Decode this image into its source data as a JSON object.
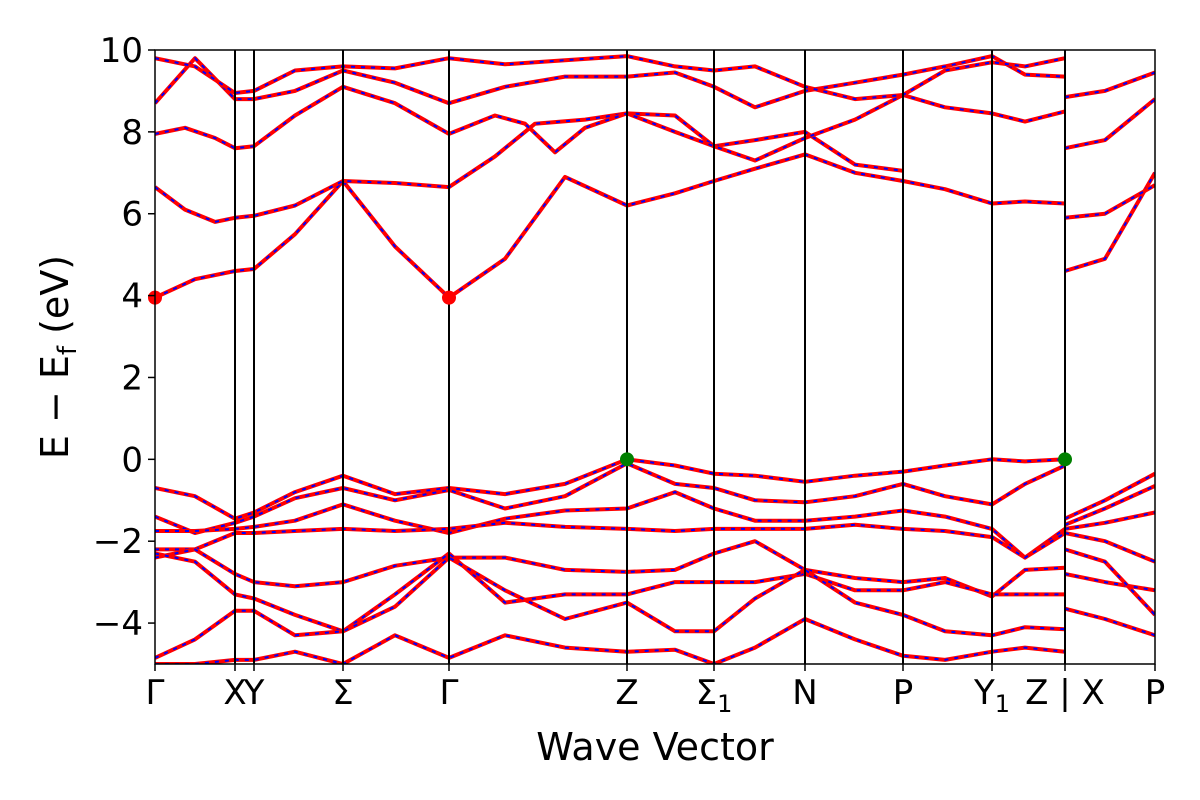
{
  "chart_data": {
    "type": "line",
    "title": "",
    "xlabel": "Wave Vector",
    "ylabel": "E − E_f (eV)",
    "ylabel_parts": {
      "main": "E − E",
      "sub": "f",
      "unit": "(eV)"
    },
    "ylim": [
      -5,
      10
    ],
    "xlim": [
      0,
      1
    ],
    "grid": false,
    "yticks": [
      {
        "value": -4,
        "label": "−4"
      },
      {
        "value": -2,
        "label": "−2"
      },
      {
        "value": 0,
        "label": "0"
      },
      {
        "value": 2,
        "label": "2"
      },
      {
        "value": 4,
        "label": "4"
      },
      {
        "value": 6,
        "label": "6"
      },
      {
        "value": 8,
        "label": "8"
      },
      {
        "value": 10,
        "label": "10"
      }
    ],
    "kpoints": [
      {
        "x": 0.0,
        "label": "Γ",
        "sub": ""
      },
      {
        "x": 0.08,
        "label": "X",
        "sub": ""
      },
      {
        "x": 0.099,
        "label": "Y",
        "sub": ""
      },
      {
        "x": 0.188,
        "label": "Σ",
        "sub": ""
      },
      {
        "x": 0.294,
        "label": "Γ",
        "sub": ""
      },
      {
        "x": 0.472,
        "label": "Z",
        "sub": ""
      },
      {
        "x": 0.559,
        "label": "Σ",
        "sub": "1"
      },
      {
        "x": 0.65,
        "label": "N",
        "sub": ""
      },
      {
        "x": 0.748,
        "label": "P",
        "sub": ""
      },
      {
        "x": 0.837,
        "label": "Y",
        "sub": "1"
      },
      {
        "x": 0.91,
        "label": "Z | X",
        "sub": ""
      },
      {
        "x": 1.0,
        "label": "P",
        "sub": ""
      }
    ],
    "colors": {
      "band_primary": "#ff0000",
      "band_overlay": "#0000ff",
      "cbm_marker": "#ff0000",
      "vbm_marker": "#008000",
      "vline": "#000000"
    },
    "markers": [
      {
        "type": "cbm",
        "x": 0.0,
        "y": 3.95
      },
      {
        "type": "cbm",
        "x": 0.294,
        "y": 3.95
      },
      {
        "type": "vbm",
        "x": 0.472,
        "y": 0.0
      },
      {
        "type": "vbm",
        "x": 0.91,
        "y": 0.0
      }
    ],
    "series": [
      {
        "x": [
          0,
          0.04,
          0.08,
          0.099,
          0.14,
          0.188,
          0.24,
          0.294,
          0.35,
          0.41,
          0.472,
          0.52,
          0.559,
          0.6,
          0.65,
          0.7,
          0.748,
          0.79,
          0.837,
          0.87,
          0.91
        ],
        "y": [
          3.95,
          4.4,
          4.6,
          4.65,
          5.5,
          6.8,
          5.2,
          3.95,
          4.9,
          6.9,
          6.2,
          6.5,
          6.8,
          7.1,
          7.45,
          7.0,
          6.8,
          6.6,
          6.25,
          6.3,
          6.25
        ]
      },
      {
        "x": [
          0,
          0.03,
          0.06,
          0.08,
          0.099,
          0.14,
          0.188,
          0.24,
          0.294,
          0.34,
          0.38,
          0.43,
          0.472,
          0.52,
          0.559,
          0.6,
          0.65,
          0.7,
          0.748
        ],
        "y": [
          6.65,
          6.1,
          5.8,
          5.9,
          5.95,
          6.2,
          6.8,
          6.75,
          6.65,
          7.4,
          8.2,
          8.3,
          8.45,
          8.4,
          7.65,
          7.8,
          8.0,
          7.2,
          7.05
        ]
      },
      {
        "x": [
          0,
          0.03,
          0.06,
          0.08,
          0.099,
          0.14,
          0.188,
          0.24,
          0.294,
          0.34,
          0.37,
          0.4,
          0.43,
          0.472,
          0.52,
          0.559,
          0.6,
          0.65,
          0.7,
          0.748,
          0.79,
          0.837,
          0.87,
          0.91
        ],
        "y": [
          7.95,
          8.1,
          7.85,
          7.6,
          7.65,
          8.4,
          9.1,
          8.7,
          7.95,
          8.4,
          8.2,
          7.5,
          8.1,
          8.45,
          8.0,
          7.65,
          7.3,
          7.85,
          8.3,
          8.9,
          8.6,
          8.45,
          8.25,
          8.5
        ]
      },
      {
        "x": [
          0,
          0.04,
          0.08,
          0.099,
          0.14,
          0.188,
          0.24,
          0.294,
          0.35,
          0.41,
          0.472,
          0.52,
          0.559,
          0.6,
          0.65,
          0.7,
          0.748,
          0.79,
          0.837,
          0.87,
          0.91
        ],
        "y": [
          8.7,
          9.8,
          8.8,
          8.8,
          9.0,
          9.5,
          9.2,
          8.7,
          9.1,
          9.35,
          9.35,
          9.45,
          9.1,
          8.6,
          9.0,
          9.2,
          9.4,
          9.6,
          9.85,
          9.4,
          9.35
        ]
      },
      {
        "x": [
          0,
          0.04,
          0.08,
          0.099,
          0.14,
          0.188,
          0.24,
          0.294,
          0.35,
          0.41,
          0.472,
          0.52,
          0.559,
          0.6,
          0.65,
          0.7,
          0.748,
          0.79,
          0.837,
          0.87,
          0.91
        ],
        "y": [
          9.8,
          9.6,
          8.95,
          9.0,
          9.5,
          9.6,
          9.55,
          9.8,
          9.65,
          9.75,
          9.85,
          9.6,
          9.5,
          9.6,
          9.1,
          8.8,
          8.9,
          9.5,
          9.7,
          9.6,
          9.8
        ]
      },
      {
        "x": [
          0.91,
          0.95,
          1.0
        ],
        "y": [
          4.6,
          4.9,
          7.0
        ]
      },
      {
        "x": [
          0.91,
          0.95,
          1.0
        ],
        "y": [
          5.9,
          6.0,
          6.7
        ]
      },
      {
        "x": [
          0.91,
          0.95,
          1.0
        ],
        "y": [
          7.6,
          7.8,
          8.8
        ]
      },
      {
        "x": [
          0.91,
          0.95,
          1.0
        ],
        "y": [
          8.85,
          9.0,
          9.45
        ]
      },
      {
        "x": [
          0,
          0.04,
          0.08,
          0.099,
          0.14,
          0.188,
          0.24,
          0.294,
          0.35,
          0.41,
          0.472,
          0.52,
          0.559,
          0.6,
          0.65,
          0.7,
          0.748,
          0.79,
          0.837,
          0.87,
          0.91
        ],
        "y": [
          -0.7,
          -0.9,
          -1.45,
          -1.3,
          -0.8,
          -0.4,
          -0.85,
          -0.7,
          -0.85,
          -0.6,
          0.0,
          -0.15,
          -0.35,
          -0.4,
          -0.55,
          -0.4,
          -0.3,
          -0.15,
          0.0,
          -0.05,
          0.0
        ]
      },
      {
        "x": [
          0,
          0.04,
          0.08,
          0.099,
          0.14,
          0.188,
          0.24,
          0.294,
          0.35,
          0.41,
          0.472,
          0.52,
          0.559,
          0.6,
          0.65,
          0.7,
          0.748,
          0.79,
          0.837,
          0.87,
          0.91
        ],
        "y": [
          -1.4,
          -1.8,
          -1.55,
          -1.4,
          -0.95,
          -0.7,
          -1.0,
          -0.75,
          -1.2,
          -0.9,
          -0.1,
          -0.6,
          -0.7,
          -1.0,
          -1.05,
          -0.9,
          -0.6,
          -0.9,
          -1.1,
          -0.6,
          -0.15
        ]
      },
      {
        "x": [
          0,
          0.04,
          0.08,
          0.099,
          0.14,
          0.188,
          0.24,
          0.294,
          0.35,
          0.41,
          0.472,
          0.52,
          0.559,
          0.6,
          0.65,
          0.7,
          0.748,
          0.79,
          0.837,
          0.87,
          0.91
        ],
        "y": [
          -1.75,
          -1.75,
          -1.7,
          -1.65,
          -1.5,
          -1.1,
          -1.5,
          -1.8,
          -1.45,
          -1.25,
          -1.2,
          -0.8,
          -1.2,
          -1.5,
          -1.5,
          -1.4,
          -1.25,
          -1.4,
          -1.7,
          -2.4,
          -1.7
        ]
      },
      {
        "x": [
          0,
          0.04,
          0.08,
          0.099,
          0.14,
          0.188,
          0.24,
          0.294,
          0.35,
          0.41,
          0.472,
          0.52,
          0.559,
          0.6,
          0.65,
          0.7,
          0.748,
          0.79,
          0.837,
          0.87,
          0.91
        ],
        "y": [
          -2.2,
          -2.2,
          -1.8,
          -1.8,
          -1.75,
          -1.7,
          -1.75,
          -1.7,
          -1.55,
          -1.65,
          -1.7,
          -1.75,
          -1.7,
          -1.7,
          -1.7,
          -1.6,
          -1.7,
          -1.75,
          -1.9,
          -2.4,
          -1.8
        ]
      },
      {
        "x": [
          0,
          0.04,
          0.08,
          0.099,
          0.14,
          0.188,
          0.24,
          0.294,
          0.35,
          0.41,
          0.472,
          0.52,
          0.559,
          0.6,
          0.65,
          0.7,
          0.748,
          0.79,
          0.837,
          0.87,
          0.91
        ],
        "y": [
          -2.4,
          -2.2,
          -2.8,
          -3.0,
          -3.1,
          -3.0,
          -2.6,
          -2.4,
          -2.4,
          -2.7,
          -2.75,
          -2.7,
          -2.3,
          -2.0,
          -2.7,
          -2.9,
          -3.0,
          -2.9,
          -3.35,
          -2.7,
          -2.65
        ]
      },
      {
        "x": [
          0,
          0.04,
          0.08,
          0.099,
          0.14,
          0.188,
          0.24,
          0.294,
          0.35,
          0.41,
          0.472,
          0.52,
          0.559,
          0.6,
          0.65,
          0.7,
          0.748,
          0.79,
          0.837,
          0.87,
          0.91
        ],
        "y": [
          -2.3,
          -2.5,
          -3.3,
          -3.4,
          -3.8,
          -4.2,
          -3.3,
          -2.3,
          -3.5,
          -3.3,
          -3.3,
          -3.0,
          -3.0,
          -3.0,
          -2.8,
          -3.2,
          -3.2,
          -3.0,
          -3.3,
          -3.3,
          -3.3
        ]
      },
      {
        "x": [
          0,
          0.04,
          0.08,
          0.099,
          0.14,
          0.188,
          0.24,
          0.294,
          0.35,
          0.41,
          0.472,
          0.52,
          0.559,
          0.6,
          0.65,
          0.7,
          0.748,
          0.79,
          0.837,
          0.87,
          0.91
        ],
        "y": [
          -4.85,
          -4.4,
          -3.7,
          -3.7,
          -4.3,
          -4.2,
          -3.6,
          -2.4,
          -3.2,
          -3.9,
          -3.5,
          -4.2,
          -4.2,
          -3.4,
          -2.7,
          -3.5,
          -3.8,
          -4.2,
          -4.3,
          -4.1,
          -4.15
        ]
      },
      {
        "x": [
          0,
          0.04,
          0.08,
          0.099,
          0.14,
          0.188,
          0.24,
          0.294,
          0.35,
          0.41,
          0.472,
          0.52,
          0.559,
          0.6,
          0.65,
          0.7,
          0.748,
          0.79,
          0.837,
          0.87,
          0.91
        ],
        "y": [
          -5.0,
          -5.0,
          -4.9,
          -4.9,
          -4.7,
          -5.0,
          -4.3,
          -4.85,
          -4.3,
          -4.6,
          -4.7,
          -4.65,
          -5.0,
          -4.6,
          -3.9,
          -4.4,
          -4.8,
          -4.9,
          -4.7,
          -4.6,
          -4.7
        ]
      },
      {
        "x": [
          0.91,
          0.95,
          1.0
        ],
        "y": [
          -1.45,
          -1.0,
          -0.35
        ]
      },
      {
        "x": [
          0.91,
          0.95,
          1.0
        ],
        "y": [
          -1.6,
          -1.2,
          -0.65
        ]
      },
      {
        "x": [
          0.91,
          0.95,
          1.0
        ],
        "y": [
          -1.7,
          -1.55,
          -1.3
        ]
      },
      {
        "x": [
          0.91,
          0.95,
          1.0
        ],
        "y": [
          -1.8,
          -2.0,
          -2.5
        ]
      },
      {
        "x": [
          0.91,
          0.95,
          1.0
        ],
        "y": [
          -2.8,
          -3.0,
          -3.2
        ]
      },
      {
        "x": [
          0.91,
          0.95,
          1.0
        ],
        "y": [
          -3.65,
          -3.9,
          -4.3
        ]
      },
      {
        "x": [
          0.91,
          0.95,
          1.0
        ],
        "y": [
          -2.2,
          -2.5,
          -3.8
        ]
      }
    ]
  }
}
